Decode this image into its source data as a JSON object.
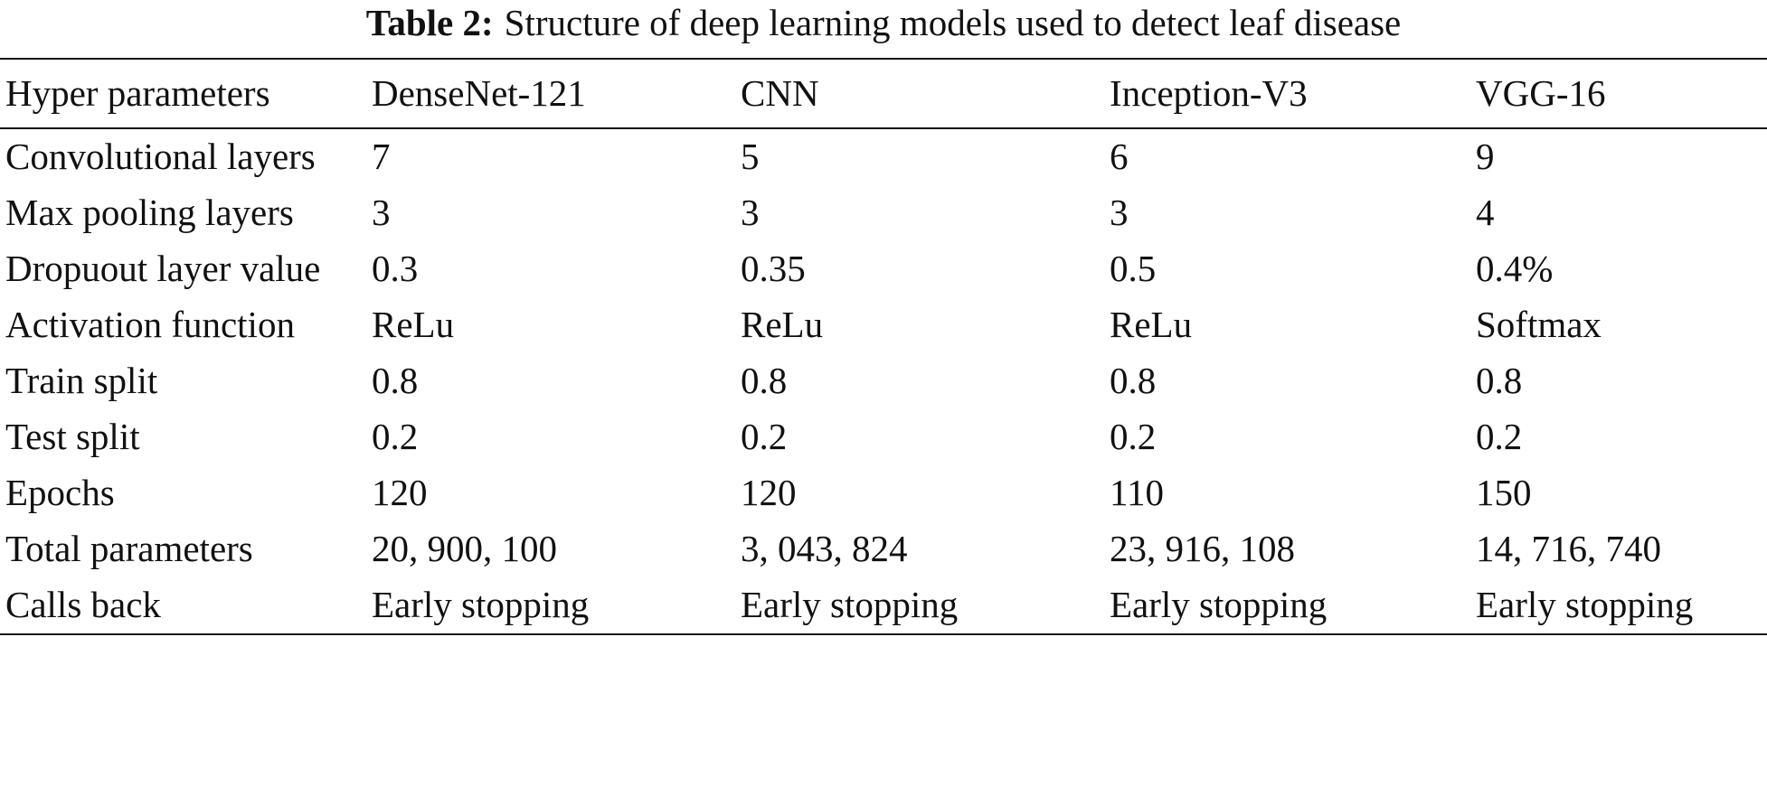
{
  "caption": {
    "label": "Table 2:",
    "text": "Structure of deep learning models used to detect leaf disease"
  },
  "table": {
    "header": [
      "Hyper parameters",
      "DenseNet-121",
      "CNN",
      "Inception-V3",
      "VGG-16"
    ],
    "rows": [
      [
        "Convolutional layers",
        "7",
        "5",
        "6",
        "9"
      ],
      [
        "Max pooling layers",
        "3",
        "3",
        "3",
        "4"
      ],
      [
        "Dropuout layer value",
        "0.3",
        "0.35",
        "0.5",
        "0.4%"
      ],
      [
        "Activation function",
        "ReLu",
        "ReLu",
        "ReLu",
        "Softmax"
      ],
      [
        "Train split",
        "0.8",
        "0.8",
        "0.8",
        "0.8"
      ],
      [
        "Test split",
        "0.2",
        "0.2",
        "0.2",
        "0.2"
      ],
      [
        "Epochs",
        "120",
        "120",
        "110",
        "150"
      ],
      [
        "Total parameters",
        "20, 900, 100",
        "3, 043, 824",
        "23, 916, 108",
        "14, 716, 740"
      ],
      [
        "Calls back",
        "Early stopping",
        "Early stopping",
        "Early stopping",
        "Early stopping"
      ]
    ]
  }
}
